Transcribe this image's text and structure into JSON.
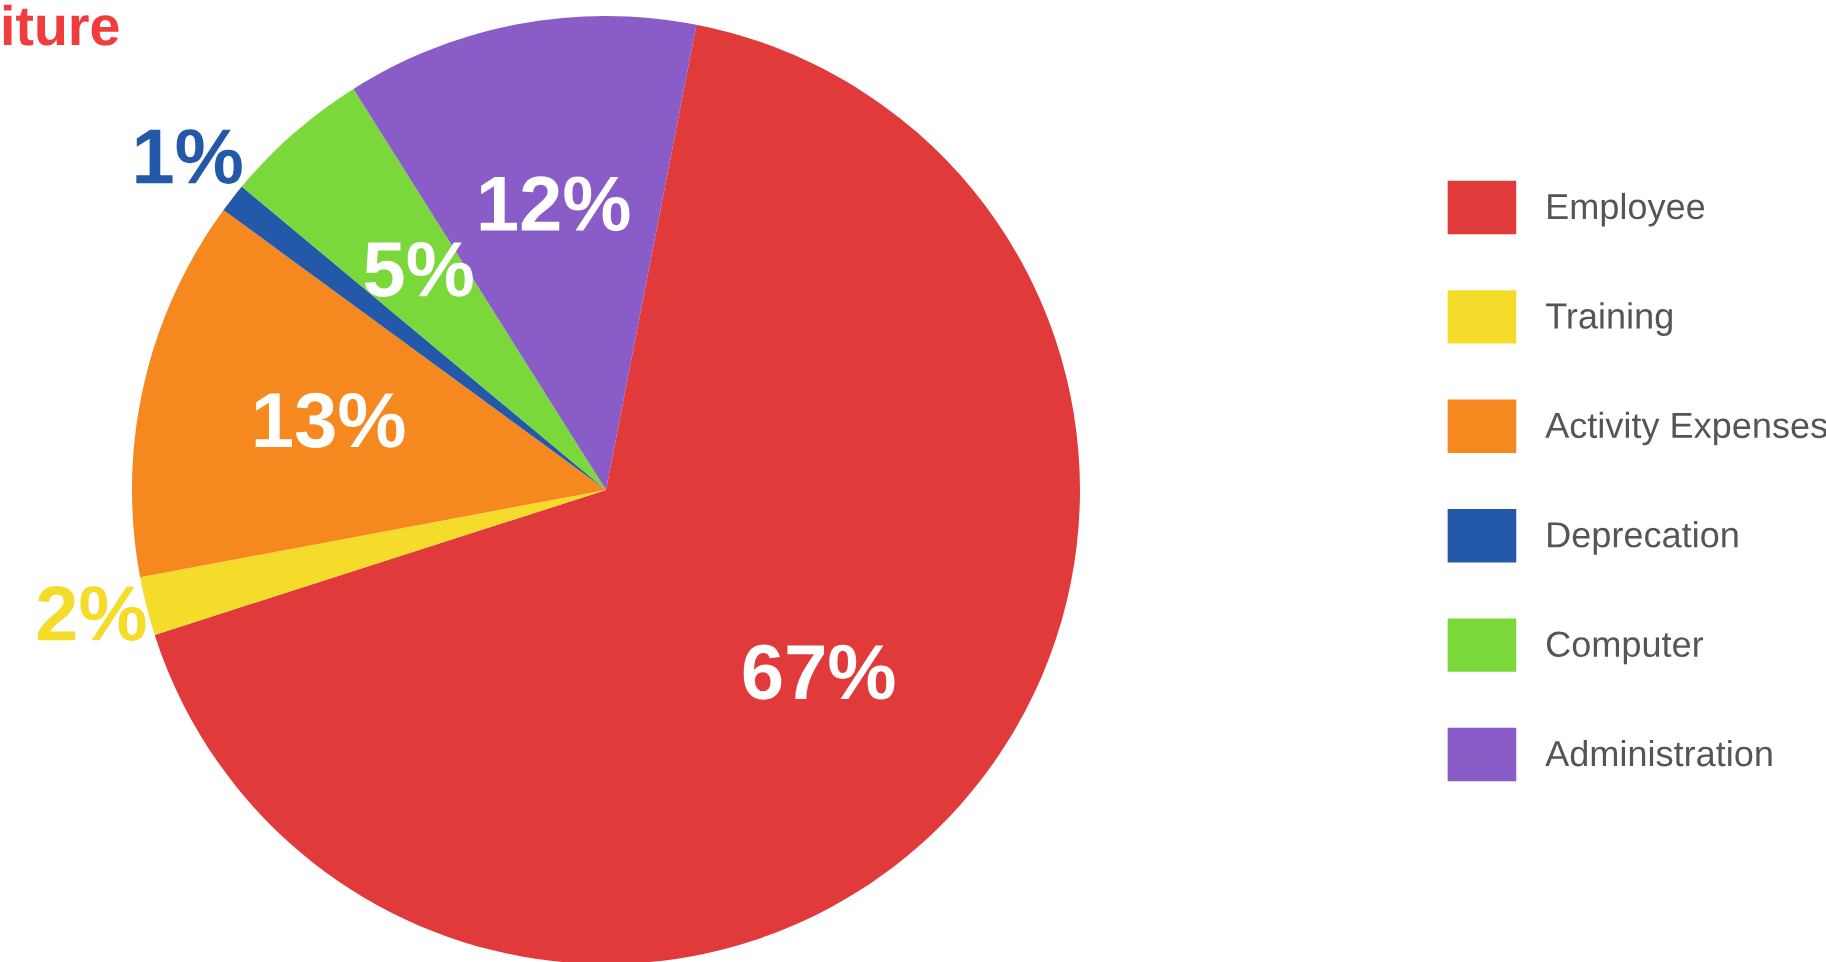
{
  "chart_data": {
    "type": "pie",
    "title": "iture",
    "categories": [
      "Employee",
      "Training",
      "Activity Expenses",
      "Deprecation",
      "Computer",
      "Administration"
    ],
    "values": [
      67,
      2,
      13,
      1,
      5,
      12
    ],
    "colors": [
      "#e03a3a",
      "#f5dc2a",
      "#f5891f",
      "#2458a8",
      "#7ad83a",
      "#8a5cc8"
    ],
    "value_labels": [
      "67%",
      "2%",
      "13%",
      "1%",
      "5%",
      "12%"
    ],
    "legend": "right"
  }
}
